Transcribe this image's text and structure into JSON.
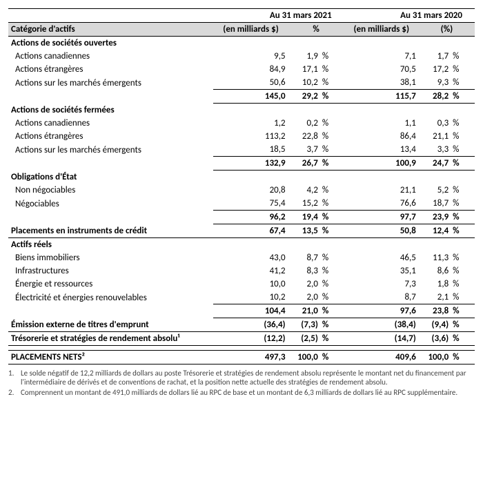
{
  "periods": {
    "p1": "Au 31 mars 2021",
    "p2": "Au 31 mars 2020"
  },
  "headers": {
    "category": "Catégorie d'actifs",
    "amount1": "(en milliards $)",
    "pct1": "%",
    "amount2": "(en milliards $)",
    "pct2": "(%)"
  },
  "sections": {
    "public_eq": {
      "title": "Actions de sociétés ouvertes",
      "rows": [
        {
          "label": "Actions canadiennes",
          "v1": "9,5",
          "p1": "1,9",
          "v2": "7,1",
          "p2": "1,7"
        },
        {
          "label": "Actions étrangères",
          "v1": "84,9",
          "p1": "17,1",
          "v2": "70,5",
          "p2": "17,2"
        },
        {
          "label": "Actions sur les marchés émergents",
          "v1": "50,6",
          "p1": "10,2",
          "v2": "38,1",
          "p2": "9,3"
        }
      ],
      "subtotal": {
        "v1": "145,0",
        "p1": "29,2",
        "v2": "115,7",
        "p2": "28,2"
      }
    },
    "private_eq": {
      "title": "Actions de sociétés fermées",
      "rows": [
        {
          "label": "Actions canadiennes",
          "v1": "1,2",
          "p1": "0,2",
          "v2": "1,1",
          "p2": "0,3"
        },
        {
          "label": "Actions étrangères",
          "v1": "113,2",
          "p1": "22,8",
          "v2": "86,4",
          "p2": "21,1"
        },
        {
          "label": "Actions sur les marchés émergents",
          "v1": "18,5",
          "p1": "3,7",
          "v2": "13,4",
          "p2": "3,3"
        }
      ],
      "subtotal": {
        "v1": "132,9",
        "p1": "26,7",
        "v2": "100,9",
        "p2": "24,7"
      }
    },
    "gov_bonds": {
      "title": "Obligations d'État",
      "rows": [
        {
          "label": "Non négociables",
          "v1": "20,8",
          "p1": "4,2",
          "v2": "21,1",
          "p2": "5,2"
        },
        {
          "label": "Négociables",
          "v1": "75,4",
          "p1": "15,2",
          "v2": "76,6",
          "p2": "18,7"
        }
      ],
      "subtotal": {
        "v1": "96,2",
        "p1": "19,4",
        "v2": "97,7",
        "p2": "23,9"
      }
    },
    "credit": {
      "title": "Placements en instruments de crédit",
      "row": {
        "v1": "67,4",
        "p1": "13,5",
        "v2": "50,8",
        "p2": "12,4"
      }
    },
    "real_assets": {
      "title": "Actifs réels",
      "rows": [
        {
          "label": "Biens immobiliers",
          "v1": "43,0",
          "p1": "8,7",
          "v2": "46,5",
          "p2": "11,3"
        },
        {
          "label": "Infrastructures",
          "v1": "41,2",
          "p1": "8,3",
          "v2": "35,1",
          "p2": "8,6"
        },
        {
          "label": "Énergie et ressources",
          "v1": "10,0",
          "p1": "2,0",
          "v2": "7,3",
          "p2": "1,8"
        },
        {
          "label": "Électricité et énergies renouvelables",
          "v1": "10,2",
          "p1": "2,0",
          "v2": "8,7",
          "p2": "2,1"
        }
      ],
      "subtotal": {
        "v1": "104,4",
        "p1": "21,0",
        "v2": "97,6",
        "p2": "23,8"
      }
    },
    "ext_debt": {
      "title": "Émission externe de titres d'emprunt",
      "row": {
        "v1": "(36,4)",
        "p1": "(7,3)",
        "v2": "(38,4)",
        "p2": "(9,4)"
      }
    },
    "treasury": {
      "title": "Trésorerie et stratégies de rendement absolu¹",
      "row": {
        "v1": "(12,2)",
        "p1": "(2,5)",
        "v2": "(14,7)",
        "p2": "(3,6)"
      }
    },
    "net": {
      "title": "PLACEMENTS NETS²",
      "row": {
        "v1": "497,3",
        "p1": "100,0",
        "v2": "409,6",
        "p2": "100,0"
      }
    }
  },
  "pct_symbol": "%",
  "footnotes": {
    "f1_num": "1.",
    "f1_txt": "Le solde négatif de 12,2 milliards de dollars au poste Trésorerie et stratégies de rendement absolu représente le montant net du financement par l'intermédiaire de dérivés et de conventions de rachat, et la position nette actuelle des stratégies de rendement absolu.",
    "f2_num": "2.",
    "f2_txt": "Comprennent un montant de 491,0 milliards de dollars lié au RPC de base et un montant de 6,3 milliards de dollars lié au RPC supplémentaire."
  }
}
